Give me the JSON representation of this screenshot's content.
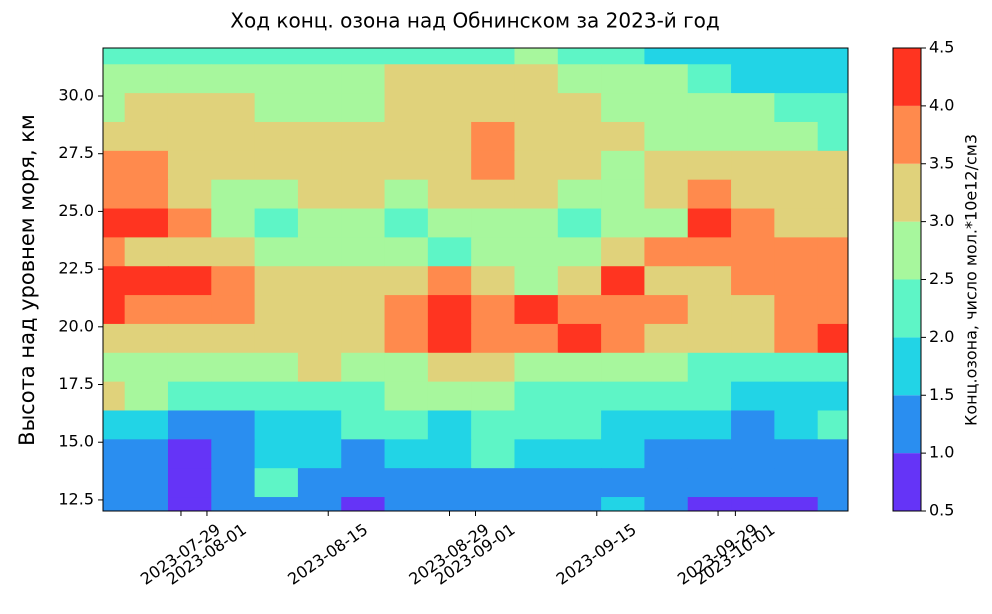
{
  "chart_data": {
    "type": "contourf",
    "title": "Ход конц. озона над Обнинском за 2023-й год",
    "y_label": "Высота над уровнем моря, км",
    "colorbar_label": "Конц.озона, число мол.*10e12/см3",
    "x": [
      "2023-07-20",
      "2023-07-25",
      "2023-07-30",
      "2023-08-04",
      "2023-08-09",
      "2023-08-14",
      "2023-08-19",
      "2023-08-24",
      "2023-08-29",
      "2023-09-03",
      "2023-09-08",
      "2023-09-13",
      "2023-09-18",
      "2023-09-23",
      "2023-09-28",
      "2023-10-03",
      "2023-10-08",
      "2023-10-13"
    ],
    "y": [
      32,
      30.75,
      29.5,
      28.25,
      27,
      25.75,
      24.5,
      23.25,
      22,
      20.75,
      19.5,
      18.25,
      17,
      15.75,
      14.5,
      13.25,
      12
    ],
    "z": [
      [
        2.25,
        2.25,
        2.25,
        2.25,
        2.25,
        2.25,
        2.25,
        2.25,
        2.25,
        2.25,
        2.75,
        2.25,
        2.25,
        1.75,
        1.75,
        1.75,
        1.75,
        1.75
      ],
      [
        2.75,
        2.75,
        2.75,
        2.75,
        2.75,
        2.75,
        2.75,
        3.25,
        3.25,
        3.25,
        3.25,
        2.75,
        2.75,
        2.75,
        2.25,
        1.75,
        1.75,
        1.75
      ],
      [
        2.75,
        3.25,
        3.25,
        3.25,
        2.75,
        2.75,
        2.75,
        3.25,
        3.25,
        3.25,
        3.25,
        3.25,
        2.75,
        2.75,
        2.75,
        2.75,
        2.25,
        2.25
      ],
      [
        3.25,
        3.25,
        3.25,
        3.25,
        3.25,
        3.25,
        3.25,
        3.25,
        3.25,
        3.75,
        3.25,
        3.25,
        3.25,
        2.75,
        2.75,
        2.75,
        2.75,
        2.25
      ],
      [
        3.75,
        3.75,
        3.25,
        3.25,
        3.25,
        3.25,
        3.25,
        3.25,
        3.25,
        3.75,
        3.25,
        3.25,
        2.75,
        3.25,
        3.25,
        3.25,
        3.25,
        3.25
      ],
      [
        3.75,
        3.75,
        3.25,
        2.75,
        2.75,
        3.25,
        3.25,
        2.75,
        3.25,
        3.25,
        3.25,
        2.75,
        2.75,
        3.25,
        3.75,
        3.25,
        3.25,
        3.25
      ],
      [
        4.25,
        4.25,
        3.75,
        2.75,
        2.25,
        2.75,
        2.75,
        2.25,
        2.75,
        2.75,
        2.75,
        2.25,
        2.75,
        2.75,
        4.25,
        3.75,
        3.25,
        3.25
      ],
      [
        3.75,
        3.25,
        3.25,
        3.25,
        2.75,
        2.75,
        2.75,
        2.75,
        2.25,
        2.75,
        2.75,
        2.75,
        3.25,
        3.75,
        3.75,
        3.75,
        3.75,
        3.75
      ],
      [
        4.25,
        4.25,
        4.25,
        3.75,
        3.25,
        3.25,
        3.25,
        3.25,
        3.75,
        3.25,
        2.75,
        3.25,
        4.25,
        3.25,
        3.25,
        3.75,
        3.75,
        3.75
      ],
      [
        4.25,
        3.75,
        3.75,
        3.75,
        3.25,
        3.25,
        3.25,
        3.75,
        4.25,
        3.75,
        4.25,
        3.75,
        3.75,
        3.75,
        3.25,
        3.25,
        3.75,
        3.75
      ],
      [
        3.25,
        3.25,
        3.25,
        3.25,
        3.25,
        3.25,
        3.25,
        3.75,
        4.25,
        3.75,
        3.75,
        4.25,
        3.75,
        3.25,
        3.25,
        3.25,
        3.75,
        4.25
      ],
      [
        2.75,
        2.75,
        2.75,
        2.75,
        2.75,
        3.25,
        2.75,
        2.75,
        3.25,
        3.25,
        2.75,
        2.75,
        2.75,
        2.75,
        2.25,
        2.25,
        2.25,
        2.25
      ],
      [
        3.25,
        2.75,
        2.25,
        2.25,
        2.25,
        2.25,
        2.25,
        2.75,
        2.75,
        2.75,
        2.25,
        2.25,
        2.25,
        2.25,
        2.25,
        1.75,
        1.75,
        1.75
      ],
      [
        1.75,
        1.75,
        1.25,
        1.25,
        1.75,
        1.75,
        2.25,
        2.25,
        1.75,
        2.25,
        2.25,
        2.25,
        1.75,
        1.75,
        1.75,
        1.25,
        1.75,
        2.25
      ],
      [
        1.25,
        1.25,
        0.75,
        1.25,
        1.75,
        1.75,
        1.25,
        1.75,
        1.75,
        2.25,
        1.75,
        1.75,
        1.75,
        1.25,
        1.25,
        1.25,
        1.25,
        1.25
      ],
      [
        1.25,
        1.25,
        0.75,
        1.25,
        2.25,
        1.25,
        1.25,
        1.25,
        1.25,
        1.25,
        1.25,
        1.25,
        1.25,
        1.25,
        1.25,
        1.25,
        1.25,
        1.25
      ],
      [
        1.25,
        1.25,
        0.75,
        1.25,
        1.25,
        1.25,
        0.75,
        1.25,
        1.25,
        1.25,
        1.25,
        1.25,
        1.75,
        1.25,
        0.75,
        0.75,
        0.75,
        1.25
      ]
    ],
    "levels": [
      0.5,
      1,
      1.5,
      2,
      2.5,
      3,
      3.5,
      4,
      4.5
    ],
    "colors": [
      "#6534f7",
      "#2a8ef0",
      "#22d4e6",
      "#5ef5c6",
      "#a7f79d",
      "#e0d27b",
      "#ff8a4d",
      "#ff3420"
    ],
    "xlim": [
      "2023-07-20",
      "2023-10-14"
    ],
    "xticks": [
      "2023-07-29",
      "2023-08-01",
      "2023-08-15",
      "2023-08-29",
      "2023-09-01",
      "2023-09-15",
      "2023-09-29",
      "2023-10-01"
    ],
    "ylim": [
      12.02,
      32.08
    ],
    "yticks": [
      12.5,
      {
        "value": 15,
        "label": "15.0"
      },
      17.5,
      {
        "value": 20,
        "label": "20.0"
      },
      22.5,
      {
        "value": 25,
        "label": "25.0"
      },
      27.5,
      {
        "value": 30,
        "label": "30.0"
      }
    ],
    "clim": [
      0.5,
      4.5
    ],
    "cticks": [
      0.5,
      {
        "value": 1,
        "label": "1.0"
      },
      1.5,
      {
        "value": 2,
        "label": "2.0"
      },
      2.5,
      {
        "value": 3,
        "label": "3.0"
      },
      3.5,
      {
        "value": 4,
        "label": "4.0"
      },
      4.5
    ]
  }
}
